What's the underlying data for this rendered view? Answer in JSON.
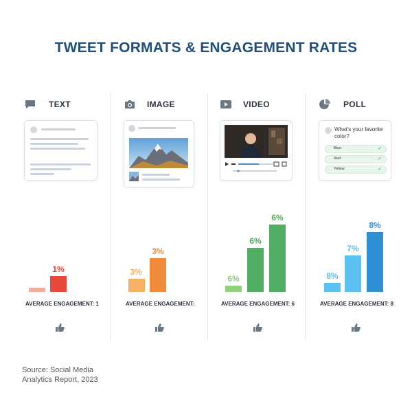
{
  "title": "TWEET FORMATS & ENGAGEMENT RATES",
  "source": "Source: Social Media Analytics Report, 2023",
  "colors": {
    "title": "#1f4f7a",
    "text_light": "#f7a99a",
    "text_dark": "#e8483b",
    "image_light": "#f8b265",
    "image_dark": "#ee8a3a",
    "video_light": "#8fd17c",
    "video_dark": "#4fae62",
    "poll_light": "#5cc1f0",
    "poll_dark": "#2f8fd4"
  },
  "formats": [
    {
      "title": "TEXT",
      "icon": "speech-bubble-icon",
      "avg_label": "AVERAGE ENGAGEMENT: 1",
      "bars": [
        {
          "label": ""
        },
        {
          "label": "1%"
        }
      ]
    },
    {
      "title": "IMAGE",
      "icon": "camera-icon",
      "avg_label": "AVERAGE ENGAGEMENT: ",
      "bars": [
        {
          "label": "3%"
        },
        {
          "label": "3%"
        }
      ]
    },
    {
      "title": "VIDEO",
      "icon": "play-icon",
      "avg_label": "AVERAGE ENGAGEMENT: 6",
      "bars": [
        {
          "label": "6%"
        },
        {
          "label": "6%"
        },
        {
          "label": "6%"
        }
      ]
    },
    {
      "title": "POLL",
      "icon": "pie-chart-icon",
      "avg_label": "AVERAGE ENGAGEMENT: 8",
      "bars": [
        {
          "label": "8%"
        },
        {
          "label": "7%"
        },
        {
          "label": "8%"
        }
      ],
      "poll": {
        "question": "What's your favorite color?",
        "options": [
          "Blue",
          "Red",
          "Yellow"
        ]
      }
    }
  ],
  "chart_data": {
    "type": "bar",
    "title": "TWEET FORMATS & ENGAGEMENT RATES",
    "categories": [
      "TEXT",
      "IMAGE",
      "VIDEO",
      "POLL"
    ],
    "series_by_category": {
      "TEXT": [
        0.3,
        1.2
      ],
      "IMAGE": [
        1.0,
        2.6
      ],
      "VIDEO": [
        0.5,
        3.4,
        5.2
      ],
      "POLL": [
        0.7,
        2.8,
        4.6
      ]
    },
    "ylim": [
      0,
      6.5
    ],
    "grid": false,
    "legend": "none"
  }
}
